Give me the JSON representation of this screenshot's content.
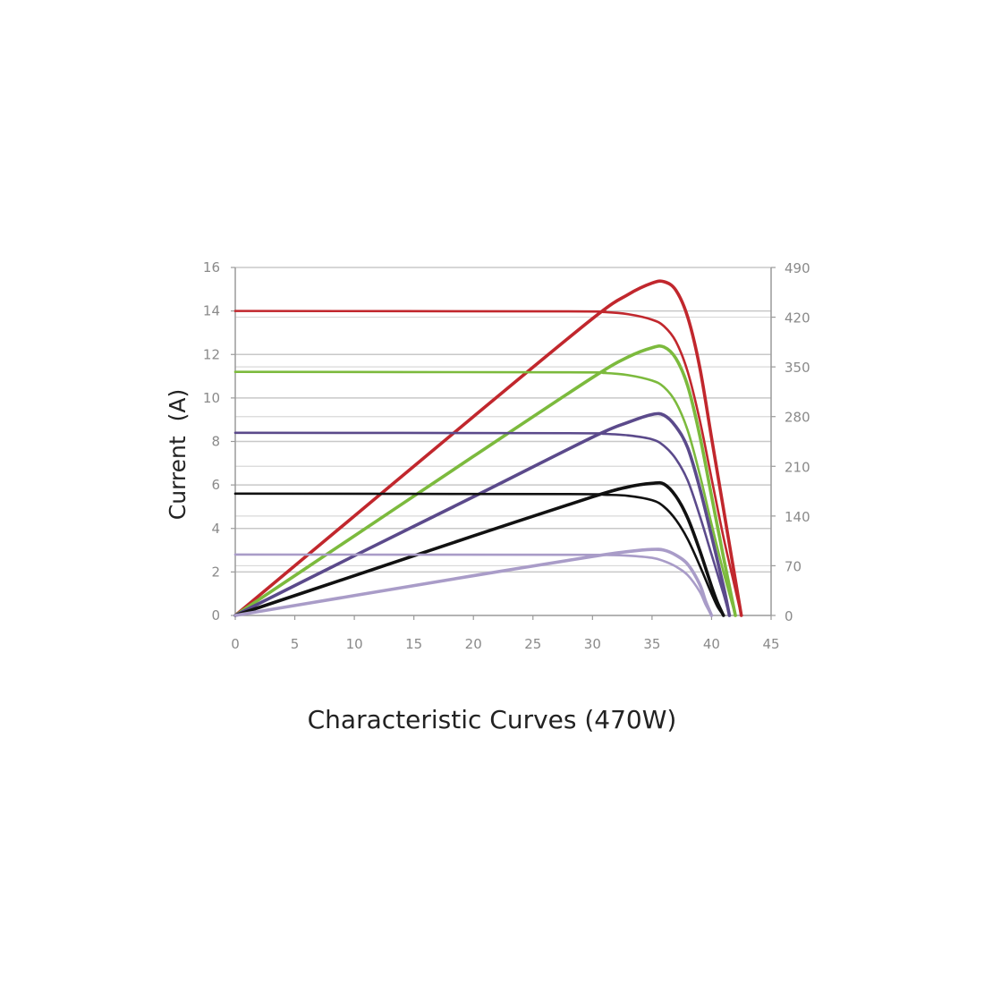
{
  "caption": "Characteristic Curves (470W)",
  "chart_data": {
    "type": "line",
    "title": "",
    "xlabel": "",
    "ylabel": "Current  (A)",
    "y2label": "",
    "xlim": [
      0,
      45
    ],
    "ylim": [
      0,
      16
    ],
    "y2lim": [
      0,
      490
    ],
    "x_ticks": [
      0,
      5,
      10,
      15,
      20,
      25,
      30,
      35,
      40,
      45
    ],
    "y_ticks": [
      0,
      2,
      4,
      6,
      8,
      10,
      12,
      14,
      16
    ],
    "y2_ticks": [
      0,
      70,
      140,
      210,
      280,
      350,
      420,
      490
    ],
    "grid": true,
    "series": [
      {
        "color": "#c1272d",
        "axis": "left",
        "kind": "current",
        "x": [
          0,
          28,
          31,
          33,
          35,
          36,
          37,
          38,
          39,
          40,
          41,
          42,
          42.5
        ],
        "y": [
          14.0,
          13.98,
          13.95,
          13.85,
          13.6,
          13.3,
          12.6,
          11.2,
          9.0,
          6.3,
          3.6,
          1.2,
          0
        ]
      },
      {
        "color": "#c1272d",
        "axis": "right",
        "kind": "power",
        "x": [
          0,
          10,
          20,
          30,
          33,
          35,
          36,
          37,
          38,
          39,
          40,
          41,
          42,
          42.5
        ],
        "y": [
          0,
          140,
          280,
          418,
          452,
          468,
          470,
          458,
          420,
          350,
          250,
          150,
          50,
          0
        ]
      },
      {
        "color": "#7cba3d",
        "axis": "left",
        "kind": "current",
        "x": [
          0,
          28,
          31,
          33,
          35,
          36,
          37,
          38,
          39,
          40,
          41,
          42
        ],
        "y": [
          11.2,
          11.18,
          11.15,
          11.05,
          10.8,
          10.5,
          9.8,
          8.5,
          6.5,
          4.2,
          2.0,
          0
        ]
      },
      {
        "color": "#7cba3d",
        "axis": "right",
        "kind": "power",
        "x": [
          0,
          10,
          20,
          30,
          33,
          35,
          36,
          37,
          38,
          39,
          40,
          41,
          42
        ],
        "y": [
          0,
          112,
          224,
          335,
          364,
          377,
          378,
          362,
          323,
          254,
          168,
          82,
          0
        ]
      },
      {
        "color": "#5b4a8b",
        "axis": "left",
        "kind": "current",
        "x": [
          0,
          28,
          31,
          33,
          35,
          36,
          37,
          38,
          39,
          40,
          41,
          41.5
        ],
        "y": [
          8.4,
          8.38,
          8.35,
          8.28,
          8.1,
          7.8,
          7.2,
          6.2,
          4.6,
          2.8,
          1.0,
          0
        ]
      },
      {
        "color": "#5b4a8b",
        "axis": "right",
        "kind": "power",
        "x": [
          0,
          10,
          20,
          30,
          33,
          35,
          36,
          37,
          38,
          39,
          40,
          41,
          41.5
        ],
        "y": [
          0,
          84,
          167,
          251,
          272,
          283,
          282,
          266,
          236,
          180,
          112,
          41,
          0
        ]
      },
      {
        "color": "#111111",
        "axis": "left",
        "kind": "current",
        "x": [
          0,
          28,
          31,
          33,
          35,
          36,
          37,
          38,
          39,
          40,
          40.5,
          41
        ],
        "y": [
          5.6,
          5.58,
          5.55,
          5.5,
          5.3,
          5.0,
          4.4,
          3.5,
          2.3,
          1.0,
          0.4,
          0
        ]
      },
      {
        "color": "#111111",
        "axis": "right",
        "kind": "power",
        "x": [
          0,
          10,
          20,
          30,
          33,
          35,
          36,
          37,
          38,
          39,
          40,
          40.5,
          41
        ],
        "y": [
          0,
          56,
          112,
          167,
          181,
          186,
          185,
          168,
          137,
          92,
          41,
          18,
          0
        ]
      },
      {
        "color": "#a99cc8",
        "axis": "left",
        "kind": "current",
        "x": [
          0,
          28,
          31,
          33,
          35,
          36,
          37,
          38,
          39,
          39.5,
          40
        ],
        "y": [
          2.8,
          2.79,
          2.78,
          2.75,
          2.65,
          2.5,
          2.25,
          1.85,
          1.1,
          0.5,
          0
        ]
      },
      {
        "color": "#a99cc8",
        "axis": "right",
        "kind": "power",
        "x": [
          0,
          10,
          20,
          30,
          33,
          35,
          36,
          37,
          38,
          39,
          39.5,
          40
        ],
        "y": [
          0,
          28,
          56,
          83,
          90,
          93,
          92,
          85,
          72,
          44,
          20,
          0
        ]
      }
    ]
  }
}
